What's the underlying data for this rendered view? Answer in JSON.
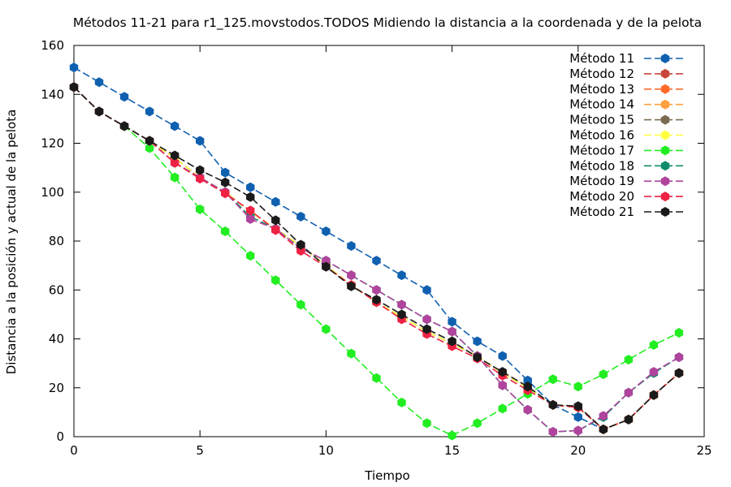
{
  "chart_data": {
    "type": "line",
    "title": "Métodos 11-21 para r1_125.movstodos.TODOS Midiendo la distancia a la coordenada y de la pelota",
    "xlabel": "Tiempo",
    "ylabel": "Distancia a la posición y actual de la pelota",
    "xlim": [
      0,
      25
    ],
    "ylim": [
      0,
      160
    ],
    "xticks": [
      0,
      5,
      10,
      15,
      20,
      25
    ],
    "yticks": [
      0,
      20,
      40,
      60,
      80,
      100,
      120,
      140,
      160
    ],
    "grid": false,
    "legend_position": "top-right",
    "x": [
      0,
      1,
      2,
      3,
      4,
      5,
      6,
      7,
      8,
      9,
      10,
      11,
      12,
      13,
      14,
      15,
      16,
      17,
      18,
      19,
      20,
      21,
      22,
      23,
      24
    ],
    "series": [
      {
        "name": "Método 11",
        "color": "#1060b0",
        "values": [
          151,
          145,
          139,
          133,
          127,
          121,
          108,
          102,
          96,
          90,
          84,
          78,
          72,
          66,
          60,
          47,
          39,
          33,
          23,
          13,
          8,
          3,
          7,
          17,
          26
        ]
      },
      {
        "name": "Método 12",
        "color": "#c8463c",
        "values": [
          143,
          133,
          127,
          121,
          114,
          106,
          100,
          92,
          85,
          78,
          70,
          62,
          55,
          49,
          43,
          38,
          33,
          26,
          20,
          13,
          12,
          3,
          7,
          17,
          26
        ]
      },
      {
        "name": "Método 13",
        "color": "#ff6a2a",
        "values": [
          143,
          133,
          127,
          121,
          114,
          106,
          100,
          92,
          85,
          78,
          70,
          62,
          55,
          49,
          43,
          38,
          33,
          26,
          20,
          13,
          12,
          3,
          7,
          17,
          26
        ]
      },
      {
        "name": "Método 14",
        "color": "#ffa040",
        "values": [
          143,
          133,
          127,
          121,
          114,
          106,
          100,
          92,
          85,
          78,
          70,
          62,
          55,
          49,
          43,
          38,
          33,
          26,
          20,
          13,
          12,
          3,
          7,
          17,
          26
        ]
      },
      {
        "name": "Método 15",
        "color": "#7a6a50",
        "values": [
          143,
          133,
          127,
          121,
          114,
          106,
          100,
          92,
          85,
          78,
          70,
          62,
          55,
          49,
          43,
          38,
          33,
          26,
          20,
          13,
          12,
          3,
          7,
          17,
          26
        ]
      },
      {
        "name": "Método 16",
        "color": "#ffff40",
        "values": [
          143,
          133,
          127,
          121,
          114,
          106,
          100,
          92,
          85,
          78,
          70,
          62,
          55,
          49,
          43,
          38,
          33,
          26,
          20,
          13,
          12,
          3,
          7,
          17,
          26
        ]
      },
      {
        "name": "Método 17",
        "color": "#22ee22",
        "values": [
          143,
          133,
          127,
          118,
          106,
          93,
          84,
          74,
          64,
          54,
          44,
          34,
          24,
          14,
          5.5,
          0.5,
          5.5,
          11.5,
          17.5,
          23.5,
          20.5,
          25.5,
          31.5,
          37.5,
          42.5
        ]
      },
      {
        "name": "Método 18",
        "color": "#108c6c",
        "values": [
          143,
          133,
          127,
          121,
          112,
          106,
          100,
          90,
          85,
          77,
          72,
          66,
          60,
          54,
          48,
          43,
          33,
          21,
          11,
          2,
          2.5,
          8,
          18,
          26,
          32.5
        ]
      },
      {
        "name": "Método 19",
        "color": "#b0449c",
        "values": [
          143,
          133,
          127,
          121,
          112,
          106,
          100,
          89,
          85,
          77,
          72,
          66,
          60,
          54,
          48,
          43,
          33,
          21,
          11,
          2,
          2.5,
          8.5,
          18,
          26.5,
          32.5
        ]
      },
      {
        "name": "Método 20",
        "color": "#ee2244",
        "values": [
          143,
          133,
          127,
          121,
          112,
          105.5,
          99.5,
          92.5,
          84.5,
          76,
          69.5,
          62,
          55,
          48,
          42,
          37,
          32,
          25,
          19,
          13,
          12,
          3,
          7,
          17,
          26
        ]
      },
      {
        "name": "Método 21",
        "color": "#1a1a1a",
        "values": [
          143,
          133,
          127,
          121,
          115,
          109,
          104,
          98,
          88.5,
          78.5,
          69.5,
          61.5,
          56,
          50,
          44,
          39,
          32.5,
          26.5,
          20.5,
          13,
          12.5,
          3,
          7,
          17,
          26
        ]
      }
    ]
  }
}
